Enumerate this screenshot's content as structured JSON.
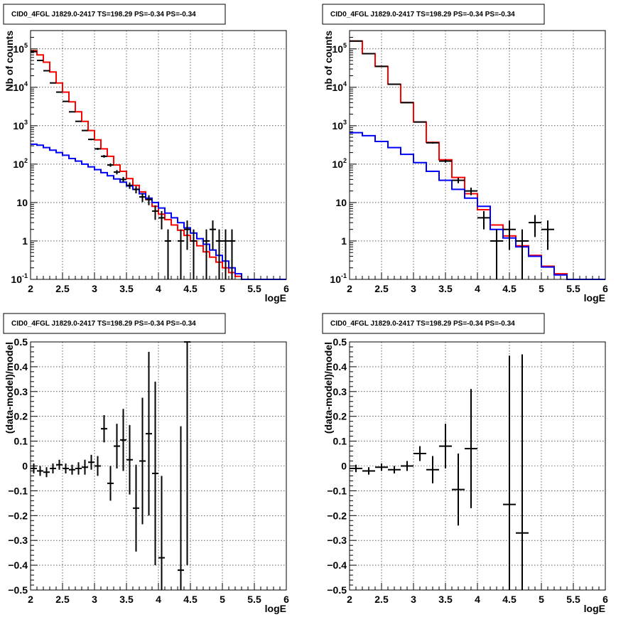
{
  "chart_data": [
    {
      "type": "step-histogram",
      "title": "CID0_4FGL J1829.0-2417 TS=198.29 PS=-0.34 PS=-0.34",
      "xlabel": "logE",
      "ylabel": "Nb of counts",
      "log_y": true,
      "xlim": [
        2,
        6
      ],
      "ylim": [
        0.1,
        300000
      ],
      "grid": true,
      "xticks": [
        "2",
        "2.5",
        "3",
        "3.5",
        "4",
        "4.5",
        "5",
        "5.5",
        "6"
      ],
      "yticks": [
        {
          "v": 0.1,
          "t": "10",
          "sup": "-1"
        },
        {
          "v": 1,
          "t": "1",
          "sup": ""
        },
        {
          "v": 10,
          "t": "10",
          "sup": ""
        },
        {
          "v": 100,
          "t": "10",
          "sup": "2"
        },
        {
          "v": 1000,
          "t": "10",
          "sup": "3"
        },
        {
          "v": 10000,
          "t": "10",
          "sup": "4"
        },
        {
          "v": 100000,
          "t": "10",
          "sup": "5"
        }
      ],
      "bin_width": 0.1,
      "series": [
        {
          "color": "#ff0000",
          "x": [
            2.0,
            2.1,
            2.2,
            2.3,
            2.4,
            2.5,
            2.6,
            2.7,
            2.8,
            2.9,
            3.0,
            3.1,
            3.2,
            3.3,
            3.4,
            3.5,
            3.6,
            3.7,
            3.8,
            3.9,
            4.0,
            4.1,
            4.2,
            4.3,
            4.4,
            4.5,
            4.6,
            4.7,
            4.8,
            4.9,
            5.0,
            5.1,
            5.2,
            5.3,
            5.4,
            5.5,
            5.6,
            5.7,
            5.8,
            5.9
          ],
          "values": [
            90000,
            70000,
            45000,
            25000,
            13000,
            7500,
            4200,
            2300,
            1300,
            750,
            430,
            250,
            160,
            95,
            65,
            42,
            28,
            19,
            12,
            8,
            5,
            3.6,
            2.6,
            1.9,
            1.4,
            1.0,
            0.75,
            0.52,
            0.38,
            0.28,
            0.2,
            0.15,
            0.12,
            0.1,
            0.1,
            0.1,
            0.1,
            0.1,
            0.1,
            0.1
          ]
        },
        {
          "color": "#0000ff",
          "x": [
            2.0,
            2.1,
            2.2,
            2.3,
            2.4,
            2.5,
            2.6,
            2.7,
            2.8,
            2.9,
            3.0,
            3.1,
            3.2,
            3.3,
            3.4,
            3.5,
            3.6,
            3.7,
            3.8,
            3.9,
            4.0,
            4.1,
            4.2,
            4.3,
            4.4,
            4.5,
            4.6,
            4.7,
            4.8,
            4.9,
            5.0,
            5.1,
            5.2,
            5.3,
            5.4,
            5.5,
            5.6,
            5.7,
            5.8,
            5.9
          ],
          "values": [
            330,
            310,
            270,
            230,
            200,
            170,
            140,
            120,
            100,
            85,
            72,
            60,
            50,
            41,
            34,
            27,
            22,
            17,
            13,
            10,
            7.2,
            5.3,
            4.0,
            3.0,
            2.2,
            1.6,
            1.15,
            0.82,
            0.58,
            0.42,
            0.3,
            0.2,
            0.14,
            0.1,
            0.1,
            0.1,
            0.1,
            0.1,
            0.1,
            0.1
          ]
        }
      ],
      "points": [
        {
          "x": 2.05,
          "y": 85000
        },
        {
          "x": 2.15,
          "y": 50000
        },
        {
          "x": 2.25,
          "y": 27000
        },
        {
          "x": 2.35,
          "y": 13000
        },
        {
          "x": 2.45,
          "y": 7500
        },
        {
          "x": 2.55,
          "y": 4300
        },
        {
          "x": 2.65,
          "y": 2300
        },
        {
          "x": 2.75,
          "y": 1300
        },
        {
          "x": 2.85,
          "y": 750
        },
        {
          "x": 2.95,
          "y": 440
        },
        {
          "x": 3.05,
          "y": 250
        },
        {
          "x": 3.15,
          "y": 160
        },
        {
          "x": 3.25,
          "y": 95
        },
        {
          "x": 3.35,
          "y": 62
        },
        {
          "x": 3.45,
          "y": 40
        },
        {
          "x": 3.55,
          "y": 28
        },
        {
          "x": 3.65,
          "y": 22
        },
        {
          "x": 3.75,
          "y": 14
        },
        {
          "x": 3.85,
          "y": 12
        },
        {
          "x": 3.95,
          "y": 6
        },
        {
          "x": 4.05,
          "y": 4
        },
        {
          "x": 4.15,
          "y": 1
        },
        {
          "x": 4.35,
          "y": 1
        },
        {
          "x": 4.45,
          "y": 2
        },
        {
          "x": 4.55,
          "y": 1
        },
        {
          "x": 4.75,
          "y": 1
        },
        {
          "x": 4.85,
          "y": 2
        },
        {
          "x": 4.95,
          "y": 1
        },
        {
          "x": 5.05,
          "y": 1
        },
        {
          "x": 5.15,
          "y": 1
        }
      ]
    },
    {
      "type": "step-histogram",
      "title": "CID0_4FGL J1829.0-2417 TS=198.29 PS=-0.34 PS=-0.34",
      "xlabel": "logE",
      "ylabel": "nb of counts",
      "log_y": true,
      "xlim": [
        2,
        6
      ],
      "ylim": [
        0.1,
        300000
      ],
      "grid": true,
      "xticks": [
        "2",
        "2.5",
        "3",
        "3.5",
        "4",
        "4.5",
        "5",
        "5.5",
        "6"
      ],
      "yticks": [
        {
          "v": 0.1,
          "t": "10",
          "sup": "-1"
        },
        {
          "v": 1,
          "t": "1",
          "sup": ""
        },
        {
          "v": 10,
          "t": "10",
          "sup": ""
        },
        {
          "v": 100,
          "t": "10",
          "sup": "2"
        },
        {
          "v": 1000,
          "t": "10",
          "sup": "3"
        },
        {
          "v": 10000,
          "t": "10",
          "sup": "4"
        },
        {
          "v": 100000,
          "t": "10",
          "sup": "5"
        }
      ],
      "bin_width": 0.2,
      "series": [
        {
          "color": "#ff0000",
          "x": [
            2.0,
            2.2,
            2.4,
            2.6,
            2.8,
            3.0,
            3.2,
            3.4,
            3.6,
            3.8,
            4.0,
            4.2,
            4.4,
            4.6,
            4.8,
            5.0,
            5.2,
            5.4,
            5.6,
            5.8
          ],
          "values": [
            160000,
            75000,
            35000,
            12000,
            4000,
            1250,
            370,
            130,
            45,
            17,
            6.5,
            2.6,
            1.35,
            0.75,
            0.42,
            0.22,
            0.14,
            0.1,
            0.1,
            0.1
          ]
        },
        {
          "color": "#0000ff",
          "x": [
            2.0,
            2.2,
            2.4,
            2.6,
            2.8,
            3.0,
            3.2,
            3.4,
            3.6,
            3.8,
            4.0,
            4.2,
            4.4,
            4.6,
            4.8,
            5.0,
            5.2,
            5.4,
            5.6,
            5.8
          ],
          "values": [
            660,
            550,
            390,
            270,
            180,
            110,
            65,
            38,
            22,
            13,
            8,
            2.0,
            1.2,
            0.7,
            0.4,
            0.21,
            0.13,
            0.1,
            0.1,
            0.1
          ]
        }
      ],
      "points": [
        {
          "x": 2.1,
          "y": 160000
        },
        {
          "x": 2.3,
          "y": 75000
        },
        {
          "x": 2.5,
          "y": 35000
        },
        {
          "x": 2.7,
          "y": 12000
        },
        {
          "x": 2.9,
          "y": 4000
        },
        {
          "x": 3.1,
          "y": 1250
        },
        {
          "x": 3.3,
          "y": 360
        },
        {
          "x": 3.5,
          "y": 120
        },
        {
          "x": 3.7,
          "y": 38
        },
        {
          "x": 3.9,
          "y": 20
        },
        {
          "x": 4.1,
          "y": 4
        },
        {
          "x": 4.3,
          "y": 1
        },
        {
          "x": 4.5,
          "y": 2
        },
        {
          "x": 4.7,
          "y": 1
        },
        {
          "x": 4.9,
          "y": 3
        },
        {
          "x": 5.1,
          "y": 2
        }
      ]
    },
    {
      "type": "errorbar",
      "title": "CID0_4FGL J1829.0-2417 TS=198.29 PS=-0.34 PS=-0.34",
      "xlabel": "logE",
      "ylabel": "(data-model)/model",
      "log_y": false,
      "xlim": [
        2,
        6
      ],
      "ylim": [
        -0.5,
        0.5
      ],
      "grid": true,
      "xticks": [
        "2",
        "2.5",
        "3",
        "3.5",
        "4",
        "4.5",
        "5",
        "5.5",
        "6"
      ],
      "yticks": [
        {
          "v": -0.5,
          "t": "−0.5"
        },
        {
          "v": -0.4,
          "t": "−0.4"
        },
        {
          "v": -0.3,
          "t": "−0.3"
        },
        {
          "v": -0.2,
          "t": "−0.2"
        },
        {
          "v": -0.1,
          "t": "−0.1"
        },
        {
          "v": 0,
          "t": "0"
        },
        {
          "v": 0.1,
          "t": "0.1"
        },
        {
          "v": 0.2,
          "t": "0.2"
        },
        {
          "v": 0.3,
          "t": "0.3"
        },
        {
          "v": 0.4,
          "t": "0.4"
        },
        {
          "v": 0.5,
          "t": "0.5"
        }
      ],
      "bin_width": 0.1,
      "points": [
        {
          "x": 2.05,
          "y": -0.01,
          "err": 0.02
        },
        {
          "x": 2.15,
          "y": -0.02,
          "err": 0.02
        },
        {
          "x": 2.25,
          "y": -0.025,
          "err": 0.02
        },
        {
          "x": 2.35,
          "y": -0.01,
          "err": 0.02
        },
        {
          "x": 2.45,
          "y": 0.005,
          "err": 0.02
        },
        {
          "x": 2.55,
          "y": -0.01,
          "err": 0.02
        },
        {
          "x": 2.65,
          "y": -0.015,
          "err": 0.02
        },
        {
          "x": 2.75,
          "y": -0.01,
          "err": 0.025
        },
        {
          "x": 2.85,
          "y": -0.005,
          "err": 0.03
        },
        {
          "x": 2.95,
          "y": 0.015,
          "err": 0.03
        },
        {
          "x": 3.05,
          "y": 0.0,
          "err": 0.04
        },
        {
          "x": 3.15,
          "y": 0.15,
          "err": 0.055
        },
        {
          "x": 3.25,
          "y": -0.07,
          "err": 0.07
        },
        {
          "x": 3.35,
          "y": 0.08,
          "err": 0.09
        },
        {
          "x": 3.45,
          "y": 0.105,
          "err": 0.125
        },
        {
          "x": 3.55,
          "y": 0.025,
          "err": 0.14
        },
        {
          "x": 3.65,
          "y": -0.17,
          "err": 0.175
        },
        {
          "x": 3.75,
          "y": 0.02,
          "err": 0.255
        },
        {
          "x": 3.85,
          "y": 0.13,
          "err": 0.33
        },
        {
          "x": 3.95,
          "y": -0.03,
          "err": 0.37
        },
        {
          "x": 4.05,
          "y": -0.37,
          "err": 0.33
        },
        {
          "x": 4.35,
          "y": -0.42,
          "err": 0.58
        },
        {
          "x": 4.45,
          "y": 0.5,
          "err": 0.9
        }
      ]
    },
    {
      "type": "errorbar",
      "title": "CID0_4FGL J1829.0-2417 TS=198.29 PS=-0.34 PS=-0.34",
      "xlabel": "logE",
      "ylabel": "(data-model)/model",
      "log_y": false,
      "xlim": [
        2,
        6
      ],
      "ylim": [
        -0.5,
        0.5
      ],
      "grid": true,
      "xticks": [
        "2",
        "2.5",
        "3",
        "3.5",
        "4",
        "4.5",
        "5",
        "5.5",
        "6"
      ],
      "yticks": [
        {
          "v": -0.5,
          "t": "−0.5"
        },
        {
          "v": -0.4,
          "t": "−0.4"
        },
        {
          "v": -0.3,
          "t": "−0.3"
        },
        {
          "v": -0.2,
          "t": "−0.2"
        },
        {
          "v": -0.1,
          "t": "−0.1"
        },
        {
          "v": 0,
          "t": "0"
        },
        {
          "v": 0.1,
          "t": "0.1"
        },
        {
          "v": 0.2,
          "t": "0.2"
        },
        {
          "v": 0.3,
          "t": "0.3"
        },
        {
          "v": 0.4,
          "t": "0.4"
        },
        {
          "v": 0.5,
          "t": "0.5"
        }
      ],
      "bin_width": 0.2,
      "points": [
        {
          "x": 2.1,
          "y": -0.01,
          "err": 0.015
        },
        {
          "x": 2.3,
          "y": -0.02,
          "err": 0.015
        },
        {
          "x": 2.5,
          "y": -0.005,
          "err": 0.015
        },
        {
          "x": 2.7,
          "y": -0.015,
          "err": 0.015
        },
        {
          "x": 2.9,
          "y": 0.0,
          "err": 0.02
        },
        {
          "x": 3.1,
          "y": 0.05,
          "err": 0.03
        },
        {
          "x": 3.3,
          "y": -0.015,
          "err": 0.055
        },
        {
          "x": 3.5,
          "y": 0.08,
          "err": 0.09
        },
        {
          "x": 3.7,
          "y": -0.095,
          "err": 0.145
        },
        {
          "x": 3.9,
          "y": 0.07,
          "err": 0.24
        },
        {
          "x": 4.5,
          "y": -0.155,
          "err": 0.6
        },
        {
          "x": 4.7,
          "y": -0.27,
          "err": 0.72
        }
      ]
    }
  ]
}
